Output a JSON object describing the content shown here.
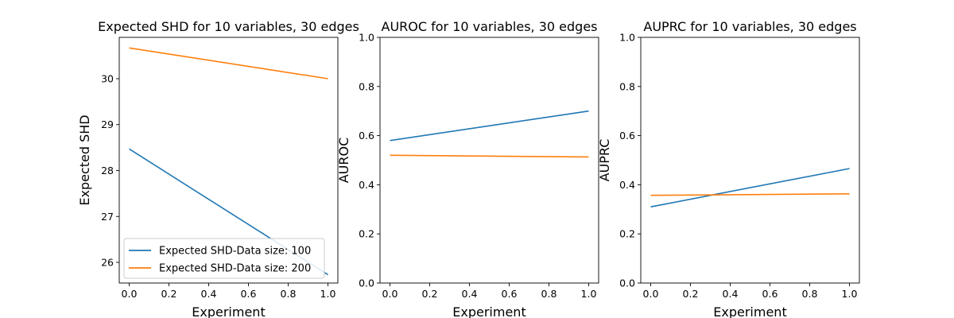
{
  "chart_data": [
    {
      "type": "line",
      "title": "Expected SHD for 10 variables, 30 edges",
      "xlabel": "Experiment",
      "ylabel": "Expected SHD",
      "xlim": [
        -0.05,
        1.05
      ],
      "ylim": [
        25.55,
        30.9
      ],
      "xticks": [
        "0.0",
        "0.2",
        "0.4",
        "0.6",
        "0.8",
        "1.0"
      ],
      "yticks": [
        "26",
        "27",
        "28",
        "29",
        "30"
      ],
      "grid": false,
      "legend": "lower-left",
      "series": [
        {
          "name": "Expected SHD-Data size: 100",
          "color": "#1f77b4",
          "x": [
            0,
            1
          ],
          "y": [
            28.47,
            25.73
          ]
        },
        {
          "name": "Expected SHD-Data size: 200",
          "color": "#ff7f0e",
          "x": [
            0,
            1
          ],
          "y": [
            30.67,
            30.0
          ]
        }
      ]
    },
    {
      "type": "line",
      "title": "AUROC for 10 variables, 30 edges",
      "xlabel": "Experiment",
      "ylabel": "AUROC",
      "xlim": [
        -0.05,
        1.05
      ],
      "ylim": [
        0.0,
        1.0
      ],
      "xticks": [
        "0.0",
        "0.2",
        "0.4",
        "0.6",
        "0.8",
        "1.0"
      ],
      "yticks": [
        "0.0",
        "0.2",
        "0.4",
        "0.6",
        "0.8",
        "1.0"
      ],
      "grid": false,
      "series": [
        {
          "color": "#1f77b4",
          "x": [
            0,
            1
          ],
          "y": [
            0.58,
            0.7
          ]
        },
        {
          "color": "#ff7f0e",
          "x": [
            0,
            1
          ],
          "y": [
            0.52,
            0.513
          ]
        }
      ]
    },
    {
      "type": "line",
      "title": "AUPRC for 10 variables, 30 edges",
      "xlabel": "Experiment",
      "ylabel": "AUPRC",
      "xlim": [
        -0.05,
        1.05
      ],
      "ylim": [
        0.0,
        1.0
      ],
      "xticks": [
        "0.0",
        "0.2",
        "0.4",
        "0.6",
        "0.8",
        "1.0"
      ],
      "yticks": [
        "0.0",
        "0.2",
        "0.4",
        "0.6",
        "0.8",
        "1.0"
      ],
      "grid": false,
      "series": [
        {
          "color": "#1f77b4",
          "x": [
            0,
            1
          ],
          "y": [
            0.31,
            0.466
          ]
        },
        {
          "color": "#ff7f0e",
          "x": [
            0,
            1
          ],
          "y": [
            0.357,
            0.363
          ]
        }
      ]
    }
  ]
}
